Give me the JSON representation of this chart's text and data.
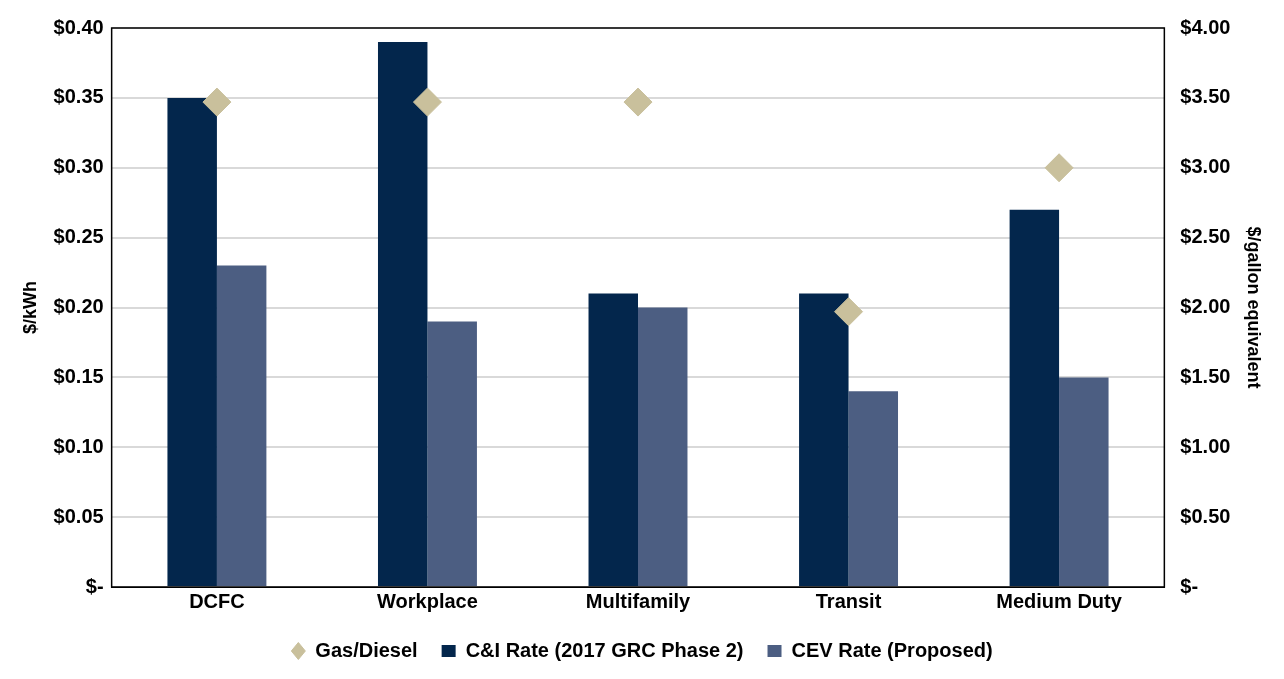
{
  "chart_data": {
    "type": "bar",
    "ylabel": "$/kWh",
    "y2label": "$/gallon equivalent",
    "categories": [
      "DCFC",
      "Workplace",
      "Multifamily",
      "Transit",
      "Medium Duty"
    ],
    "series": [
      {
        "name": "C&I Rate (2017 GRC Phase 2)",
        "color": "#03264c",
        "values": [
          0.35,
          0.39,
          0.21,
          0.21,
          0.27
        ]
      },
      {
        "name": "CEV Rate (Proposed)",
        "color": "#4c5e82",
        "values": [
          0.23,
          0.19,
          0.2,
          0.14,
          0.15
        ]
      },
      {
        "name": "Gas/Diesel",
        "type": "scatter",
        "axis": "y2",
        "marker": "diamond",
        "color": "#c9c09c",
        "values": [
          3.47,
          3.47,
          3.47,
          1.97,
          3.0
        ]
      }
    ],
    "ylim": [
      0,
      0.4
    ],
    "yticks": [
      {
        "value": 0,
        "label": "$-"
      },
      {
        "value": 0.05,
        "label": "$0.05"
      },
      {
        "value": 0.1,
        "label": "$0.10"
      },
      {
        "value": 0.15,
        "label": "$0.15"
      },
      {
        "value": 0.2,
        "label": "$0.20"
      },
      {
        "value": 0.25,
        "label": "$0.25"
      },
      {
        "value": 0.3,
        "label": "$0.30"
      },
      {
        "value": 0.35,
        "label": "$0.35"
      },
      {
        "value": 0.4,
        "label": "$0.40"
      }
    ],
    "y2lim": [
      0,
      4
    ],
    "y2ticks": [
      {
        "value": 0,
        "label": "$-"
      },
      {
        "value": 0.5,
        "label": "$0.50"
      },
      {
        "value": 1,
        "label": "$1.00"
      },
      {
        "value": 1.5,
        "label": "$1.50"
      },
      {
        "value": 2,
        "label": "$2.00"
      },
      {
        "value": 2.5,
        "label": "$2.50"
      },
      {
        "value": 3,
        "label": "$3.00"
      },
      {
        "value": 3.5,
        "label": "$3.50"
      },
      {
        "value": 4,
        "label": "$4.00"
      }
    ],
    "grid": "y",
    "legend": "bottom"
  }
}
